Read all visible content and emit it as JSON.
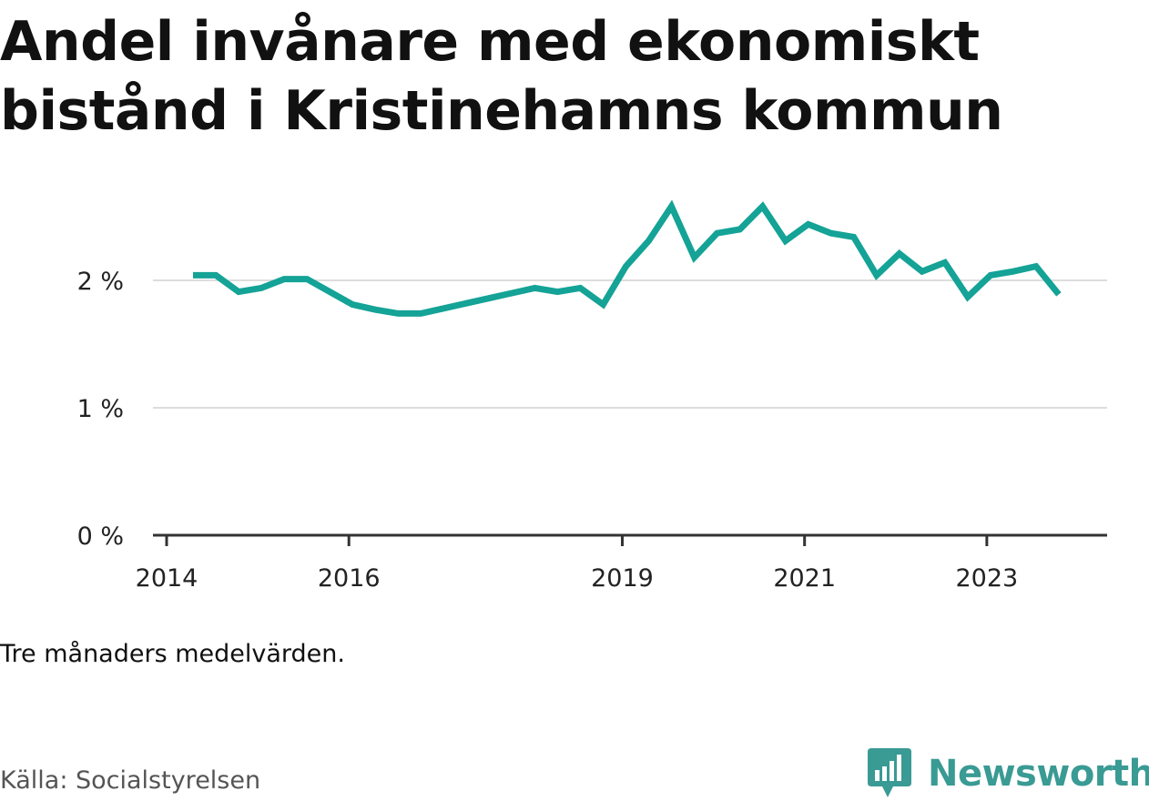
{
  "title": "Andel invånare med ekonomiskt bistånd i Kristinehamns kommun",
  "note": "Tre månaders medelvärden.",
  "source": "Källa: Socialstyrelsen",
  "brand": {
    "name": "Newsworthy",
    "icon": "newsworthy-logo-icon",
    "color": "#3a9a94"
  },
  "colors": {
    "line": "#14a396",
    "grid": "#dddddd",
    "axis": "#333333"
  },
  "chart_data": {
    "type": "line",
    "title": "Andel invånare med ekonomiskt bistånd i Kristinehamns kommun",
    "xlabel": "",
    "ylabel": "",
    "ylim": [
      0,
      2.8
    ],
    "y_ticks": [
      {
        "value": 0,
        "label": "0 %"
      },
      {
        "value": 1,
        "label": "1 %"
      },
      {
        "value": 2,
        "label": "2 %"
      }
    ],
    "x_ticks": [
      {
        "value": 2014.0,
        "label": "2014"
      },
      {
        "value": 2016.0,
        "label": "2016"
      },
      {
        "value": 2019.0,
        "label": "2019"
      },
      {
        "value": 2021.0,
        "label": "2021"
      },
      {
        "value": 2023.0,
        "label": "2023"
      }
    ],
    "xlim": [
      2013.85,
      2024.32
    ],
    "grid": true,
    "series": [
      {
        "points": [
          [
            2014.29,
            2.04
          ],
          [
            2014.54,
            2.04
          ],
          [
            2014.79,
            1.91
          ],
          [
            2015.04,
            1.94
          ],
          [
            2015.29,
            2.01
          ],
          [
            2015.54,
            2.01
          ],
          [
            2015.79,
            1.91
          ],
          [
            2016.04,
            1.81
          ],
          [
            2016.29,
            1.77
          ],
          [
            2016.54,
            1.74
          ],
          [
            2016.79,
            1.74
          ],
          [
            2017.04,
            1.78
          ],
          [
            2017.29,
            1.82
          ],
          [
            2017.54,
            1.86
          ],
          [
            2017.79,
            1.9
          ],
          [
            2018.04,
            1.94
          ],
          [
            2018.29,
            1.91
          ],
          [
            2018.54,
            1.94
          ],
          [
            2018.79,
            1.81
          ],
          [
            2019.04,
            2.11
          ],
          [
            2019.29,
            2.31
          ],
          [
            2019.54,
            2.58
          ],
          [
            2019.79,
            2.18
          ],
          [
            2020.04,
            2.37
          ],
          [
            2020.29,
            2.4
          ],
          [
            2020.54,
            2.58
          ],
          [
            2020.79,
            2.31
          ],
          [
            2021.04,
            2.44
          ],
          [
            2021.29,
            2.37
          ],
          [
            2021.54,
            2.34
          ],
          [
            2021.79,
            2.04
          ],
          [
            2022.04,
            2.21
          ],
          [
            2022.29,
            2.07
          ],
          [
            2022.54,
            2.14
          ],
          [
            2022.79,
            1.87
          ],
          [
            2023.04,
            2.04
          ],
          [
            2023.29,
            2.07
          ],
          [
            2023.54,
            2.11
          ],
          [
            2023.79,
            1.89
          ]
        ]
      }
    ]
  }
}
